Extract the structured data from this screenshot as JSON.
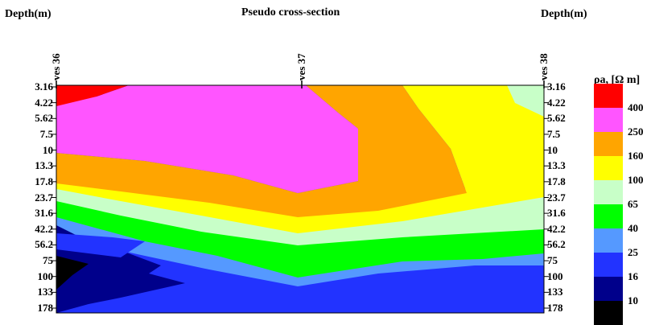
{
  "chart_data": {
    "type": "heatmap",
    "title": "Pseudo cross-section",
    "ylabel_left": "Depth(m)",
    "ylabel_right": "Depth(m)",
    "y_ticks": [
      "3.16",
      "4.22",
      "5.62",
      "7.5",
      "10",
      "13.3",
      "17.8",
      "23.7",
      "31.6",
      "42.2",
      "56.2",
      "75",
      "100",
      "133",
      "178"
    ],
    "stations": [
      "ves 36",
      "ves 37",
      "ves 38"
    ],
    "legend_title": "ρa, [Ω m]",
    "legend": [
      {
        "value": "400",
        "color": "#ff0000"
      },
      {
        "value": "250",
        "color": "#ff55ff"
      },
      {
        "value": "160",
        "color": "#ffa500"
      },
      {
        "value": "100",
        "color": "#ffff00"
      },
      {
        "value": "65",
        "color": "#c8ffc8"
      },
      {
        "value": "40",
        "color": "#00ff00"
      },
      {
        "value": "25",
        "color": "#5599ff"
      },
      {
        "value": "16",
        "color": "#2233ff"
      },
      {
        "value": "10",
        "color": "#00008b"
      },
      {
        "value": "",
        "color": "#000000"
      }
    ]
  }
}
